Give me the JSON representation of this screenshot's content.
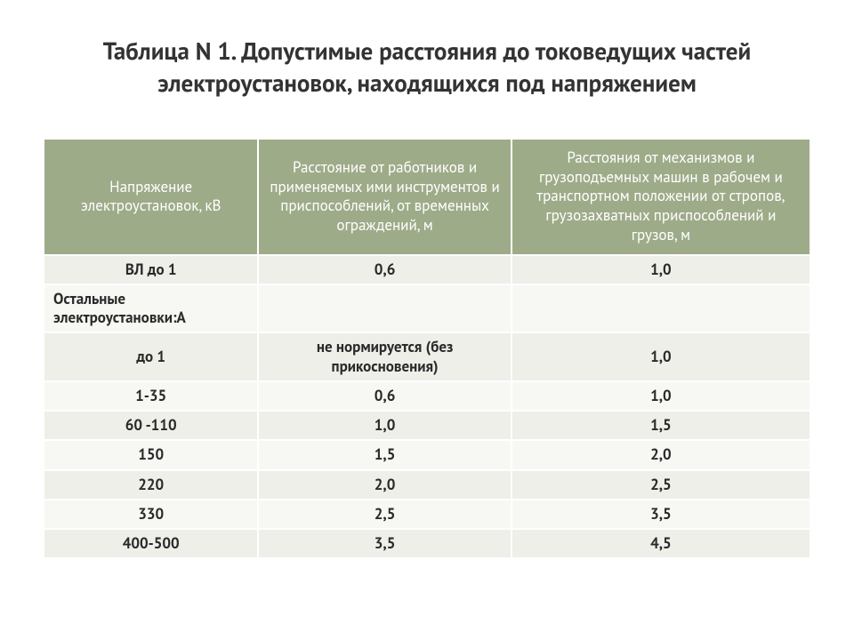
{
  "title": "Таблица N 1. Допустимые расстояния до токоведущих частей электроустановок, находящихся под напряжением",
  "table": {
    "columns": [
      "Напряжение электроустановок, кВ",
      "Расстояние от работников и применяемых ими инструментов и приспособлений, от временных ограждений, м",
      "Расстояния от механизмов и грузоподъемных машин в рабочем и транспортном положении от стропов, грузозахватных приспособлений и грузов, м"
    ],
    "rows": [
      {
        "cells": [
          "ВЛ до 1",
          "0,6",
          "1,0"
        ],
        "align": [
          "center",
          "center",
          "center"
        ]
      },
      {
        "cells": [
          "Остальные электроустановки:А",
          "",
          ""
        ],
        "align": [
          "left",
          "center",
          "center"
        ]
      },
      {
        "cells": [
          "до 1",
          "не нормируется (без прикосновения)",
          "1,0"
        ],
        "align": [
          "center",
          "center",
          "center"
        ]
      },
      {
        "cells": [
          "1-35",
          "0,6",
          "1,0"
        ],
        "align": [
          "center",
          "center",
          "center"
        ]
      },
      {
        "cells": [
          "60 -110",
          "1,0",
          "1,5"
        ],
        "align": [
          "center",
          "center",
          "center"
        ]
      },
      {
        "cells": [
          "150",
          "1,5",
          "2,0"
        ],
        "align": [
          "center",
          "center",
          "center"
        ]
      },
      {
        "cells": [
          "220",
          "2,0",
          "2,5"
        ],
        "align": [
          "center",
          "center",
          "center"
        ]
      },
      {
        "cells": [
          "330",
          "2,5",
          "3,5"
        ],
        "align": [
          "center",
          "center",
          "center"
        ]
      },
      {
        "cells": [
          "400-500",
          "3,5",
          "4,5"
        ],
        "align": [
          "center",
          "center",
          "center"
        ]
      }
    ],
    "header_bg": "#9eab88",
    "header_fg": "#ffffff",
    "row_odd_bg": "#edefe8",
    "row_even_bg": "#f7f8f4",
    "cell_fg": "#2a2a2a",
    "border_color": "#ffffff",
    "header_fontsize": 17,
    "cell_fontsize": 17,
    "title_fontsize": 27,
    "col_widths_pct": [
      28,
      33,
      39
    ]
  }
}
